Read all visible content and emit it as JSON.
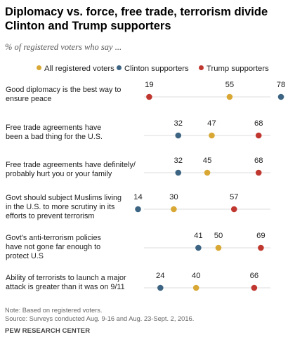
{
  "header": {
    "title": "Diplomacy vs. force, free trade, terrorism divide Clinton and Trump supporters",
    "subtitle": "% of registered voters who say ..."
  },
  "colors": {
    "all": "#d9a834",
    "clinton": "#3d6583",
    "trump": "#c0372f",
    "gridline": "#dddddd"
  },
  "chart_data": {
    "type": "scatter",
    "legend_position": "top",
    "grid": true,
    "xlim": [
      0,
      100
    ],
    "series": [
      {
        "key": "all",
        "name": "All registered voters",
        "values": [
          55,
          47,
          45,
          30,
          50,
          40
        ]
      },
      {
        "key": "clinton",
        "name": "Clinton supporters",
        "values": [
          78,
          32,
          32,
          14,
          41,
          24
        ]
      },
      {
        "key": "trump",
        "name": "Trump supporters",
        "values": [
          19,
          68,
          68,
          57,
          69,
          66
        ]
      }
    ],
    "categories": [
      {
        "lines": [
          "Good diplomacy is the best way to",
          "ensure peace"
        ]
      },
      {
        "lines": [
          "Free trade agreements have",
          "been a bad thing for the U.S."
        ]
      },
      {
        "lines": [
          "Free trade agreements have definitely/",
          "probably hurt you or your family"
        ]
      },
      {
        "lines": [
          "Govt should subject Muslims living",
          "in the U.S. to more scrutiny in its",
          "efforts to prevent terrorism"
        ]
      },
      {
        "lines": [
          "Govt's anti-terrorism policies",
          "have not gone far enough to",
          "protect U.S"
        ]
      },
      {
        "lines": [
          "Ability of terrorists to launch a major",
          "attack is greater than it was on 9/11"
        ]
      }
    ]
  },
  "footer": {
    "note": "Note: Based on registered voters.",
    "source": "Source: Surveys conducted Aug. 9-16 and Aug. 23-Sept. 2, 2016.",
    "org": "PEW RESEARCH CENTER"
  }
}
